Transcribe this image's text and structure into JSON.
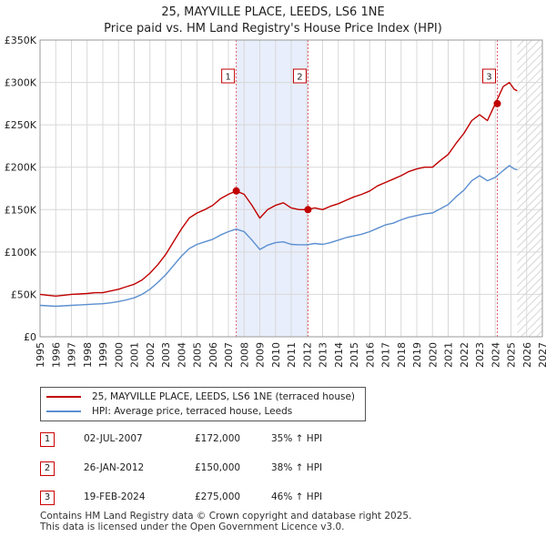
{
  "header": {
    "title": "25, MAYVILLE PLACE, LEEDS, LS6 1NE",
    "subtitle": "Price paid vs. HM Land Registry's House Price Index (HPI)"
  },
  "colors": {
    "property": "#c00000",
    "hpi": "#5b8fd0",
    "grid": "#d8d8d8",
    "shade": "#e8eefb",
    "marker_line": "#e06070"
  },
  "chart_data": {
    "type": "line",
    "title": "25, MAYVILLE PLACE, LEEDS, LS6 1NE",
    "subtitle": "Price paid vs. HM Land Registry's House Price Index (HPI)",
    "xlim": [
      1995,
      2027
    ],
    "ylim": [
      0,
      350000
    ],
    "x_ticks": [
      "1995",
      "1996",
      "1997",
      "1998",
      "1999",
      "2000",
      "2001",
      "2002",
      "2003",
      "2004",
      "2005",
      "2006",
      "2007",
      "2008",
      "2009",
      "2010",
      "2011",
      "2012",
      "2013",
      "2014",
      "2015",
      "2016",
      "2017",
      "2018",
      "2019",
      "2020",
      "2021",
      "2022",
      "2023",
      "2024",
      "2025",
      "2026",
      "2027"
    ],
    "y_ticks": [
      {
        "value": 0,
        "label": "£0"
      },
      {
        "value": 50000,
        "label": "£50K"
      },
      {
        "value": 100000,
        "label": "£100K"
      },
      {
        "value": 150000,
        "label": "£150K"
      },
      {
        "value": 200000,
        "label": "£200K"
      },
      {
        "value": 250000,
        "label": "£250K"
      },
      {
        "value": 300000,
        "label": "£300K"
      },
      {
        "value": 350000,
        "label": "£350K"
      }
    ],
    "shaded_ranges": [
      [
        2007.5,
        2012.07
      ]
    ],
    "forecast_from": 2025.4,
    "series": [
      {
        "name": "25, MAYVILLE PLACE, LEEDS, LS6 1NE (terraced house)",
        "points": [
          [
            1995,
            50000
          ],
          [
            1995.5,
            49000
          ],
          [
            1996,
            48000
          ],
          [
            1996.5,
            49000
          ],
          [
            1997,
            50000
          ],
          [
            1997.5,
            50500
          ],
          [
            1998,
            51000
          ],
          [
            1998.5,
            52000
          ],
          [
            1999,
            52000
          ],
          [
            1999.5,
            54000
          ],
          [
            2000,
            56000
          ],
          [
            2000.5,
            59000
          ],
          [
            2001,
            62000
          ],
          [
            2001.5,
            67000
          ],
          [
            2002,
            75000
          ],
          [
            2002.5,
            85000
          ],
          [
            2003,
            97000
          ],
          [
            2003.5,
            112000
          ],
          [
            2004,
            127000
          ],
          [
            2004.5,
            140000
          ],
          [
            2005,
            146000
          ],
          [
            2005.5,
            150000
          ],
          [
            2006,
            155000
          ],
          [
            2006.5,
            163000
          ],
          [
            2007,
            168000
          ],
          [
            2007.5,
            172000
          ],
          [
            2008,
            168000
          ],
          [
            2008.5,
            155000
          ],
          [
            2009,
            140000
          ],
          [
            2009.5,
            150000
          ],
          [
            2010,
            155000
          ],
          [
            2010.5,
            158000
          ],
          [
            2011,
            152000
          ],
          [
            2011.5,
            150000
          ],
          [
            2012,
            150000
          ],
          [
            2012.5,
            152000
          ],
          [
            2013,
            150000
          ],
          [
            2013.5,
            154000
          ],
          [
            2014,
            157000
          ],
          [
            2014.5,
            161000
          ],
          [
            2015,
            165000
          ],
          [
            2015.5,
            168000
          ],
          [
            2016,
            172000
          ],
          [
            2016.5,
            178000
          ],
          [
            2017,
            182000
          ],
          [
            2017.5,
            186000
          ],
          [
            2018,
            190000
          ],
          [
            2018.5,
            195000
          ],
          [
            2019,
            198000
          ],
          [
            2019.5,
            200000
          ],
          [
            2020,
            200000
          ],
          [
            2020.5,
            208000
          ],
          [
            2021,
            215000
          ],
          [
            2021.5,
            228000
          ],
          [
            2022,
            240000
          ],
          [
            2022.5,
            255000
          ],
          [
            2023,
            262000
          ],
          [
            2023.5,
            255000
          ],
          [
            2024,
            275000
          ],
          [
            2024.5,
            295000
          ],
          [
            2024.9,
            300000
          ],
          [
            2025.2,
            292000
          ],
          [
            2025.4,
            290000
          ]
        ]
      },
      {
        "name": "HPI: Average price, terraced house, Leeds",
        "points": [
          [
            1995,
            37000
          ],
          [
            1995.5,
            36500
          ],
          [
            1996,
            36000
          ],
          [
            1996.5,
            36500
          ],
          [
            1997,
            37000
          ],
          [
            1997.5,
            37500
          ],
          [
            1998,
            38000
          ],
          [
            1998.5,
            38500
          ],
          [
            1999,
            39000
          ],
          [
            1999.5,
            40000
          ],
          [
            2000,
            41500
          ],
          [
            2000.5,
            43500
          ],
          [
            2001,
            46000
          ],
          [
            2001.5,
            50000
          ],
          [
            2002,
            56000
          ],
          [
            2002.5,
            64000
          ],
          [
            2003,
            73000
          ],
          [
            2003.5,
            84000
          ],
          [
            2004,
            95000
          ],
          [
            2004.5,
            104000
          ],
          [
            2005,
            109000
          ],
          [
            2005.5,
            112000
          ],
          [
            2006,
            115000
          ],
          [
            2006.5,
            120000
          ],
          [
            2007,
            124000
          ],
          [
            2007.5,
            127000
          ],
          [
            2008,
            124000
          ],
          [
            2008.5,
            114000
          ],
          [
            2009,
            103000
          ],
          [
            2009.5,
            108000
          ],
          [
            2010,
            111000
          ],
          [
            2010.5,
            112000
          ],
          [
            2011,
            109000
          ],
          [
            2011.5,
            108500
          ],
          [
            2012,
            108500
          ],
          [
            2012.5,
            110000
          ],
          [
            2013,
            109000
          ],
          [
            2013.5,
            111000
          ],
          [
            2014,
            114000
          ],
          [
            2014.5,
            117000
          ],
          [
            2015,
            119000
          ],
          [
            2015.5,
            121000
          ],
          [
            2016,
            124000
          ],
          [
            2016.5,
            128000
          ],
          [
            2017,
            132000
          ],
          [
            2017.5,
            134000
          ],
          [
            2018,
            138000
          ],
          [
            2018.5,
            141000
          ],
          [
            2019,
            143000
          ],
          [
            2019.5,
            145000
          ],
          [
            2020,
            146000
          ],
          [
            2020.5,
            151000
          ],
          [
            2021,
            156000
          ],
          [
            2021.5,
            165000
          ],
          [
            2022,
            173000
          ],
          [
            2022.5,
            184000
          ],
          [
            2023,
            190000
          ],
          [
            2023.5,
            184000
          ],
          [
            2024,
            188000
          ],
          [
            2024.5,
            196000
          ],
          [
            2024.9,
            202000
          ],
          [
            2025.2,
            198000
          ],
          [
            2025.4,
            197000
          ]
        ]
      }
    ],
    "sales": [
      {
        "id": "1",
        "x": 2007.5,
        "price": 172000,
        "date": "02-JUL-2007",
        "price_label": "£172,000",
        "hpi_label": "35% ↑ HPI"
      },
      {
        "id": "2",
        "x": 2012.07,
        "price": 150000,
        "date": "26-JAN-2012",
        "price_label": "£150,000",
        "hpi_label": "38% ↑ HPI"
      },
      {
        "id": "3",
        "x": 2024.13,
        "price": 275000,
        "date": "19-FEB-2024",
        "price_label": "£275,000",
        "hpi_label": "46% ↑ HPI"
      }
    ]
  },
  "legend": {
    "property_label": "25, MAYVILLE PLACE, LEEDS, LS6 1NE (terraced house)",
    "hpi_label": "HPI: Average price, terraced house, Leeds"
  },
  "footer": {
    "line1": "Contains HM Land Registry data © Crown copyright and database right 2025.",
    "line2": "This data is licensed under the Open Government Licence v3.0."
  }
}
